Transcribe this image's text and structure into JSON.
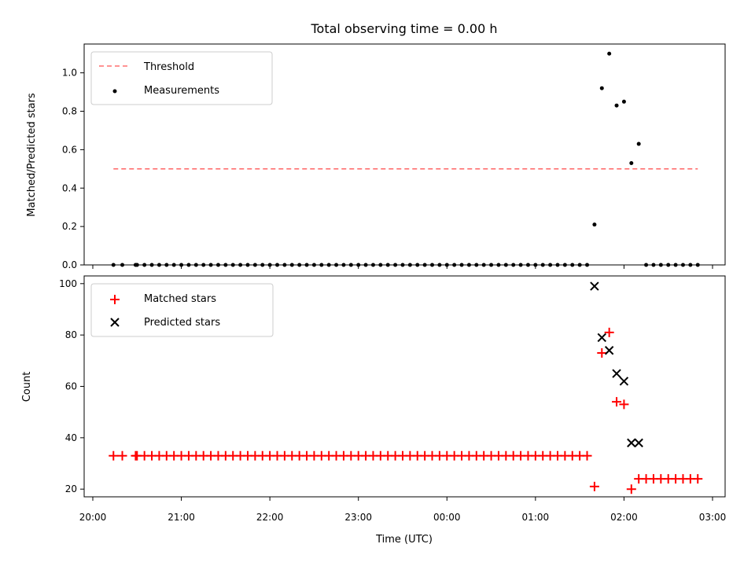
{
  "chart_data": [
    {
      "type": "scatter",
      "title": "Total observing time = 0.00 h",
      "xlabel": "",
      "ylabel": "Matched/Predicted stars",
      "xlim": [
        "20:00",
        "03:00"
      ],
      "ylim": [
        0.0,
        1.15
      ],
      "x_ticks": [
        "20:00",
        "21:00",
        "22:00",
        "23:00",
        "00:00",
        "01:00",
        "02:00",
        "03:00"
      ],
      "y_ticks": [
        "0.0",
        "0.2",
        "0.4",
        "0.6",
        "0.8",
        "1.0"
      ],
      "y_tick_values": [
        0.0,
        0.2,
        0.4,
        0.6,
        0.8,
        1.0
      ],
      "legend_position": "top-left",
      "x": [
        "20:14",
        "20:20",
        "20:29",
        "20:30",
        "20:35",
        "20:40",
        "20:45",
        "20:50",
        "20:55",
        "21:00",
        "21:05",
        "21:10",
        "21:15",
        "21:20",
        "21:25",
        "21:30",
        "21:35",
        "21:40",
        "21:45",
        "21:50",
        "21:55",
        "22:00",
        "22:05",
        "22:10",
        "22:15",
        "22:20",
        "22:25",
        "22:30",
        "22:35",
        "22:40",
        "22:45",
        "22:50",
        "22:55",
        "23:00",
        "23:05",
        "23:10",
        "23:15",
        "23:20",
        "23:25",
        "23:30",
        "23:35",
        "23:40",
        "23:45",
        "23:50",
        "23:55",
        "00:00",
        "00:05",
        "00:10",
        "00:15",
        "00:20",
        "00:25",
        "00:30",
        "00:35",
        "00:40",
        "00:45",
        "00:50",
        "00:55",
        "01:00",
        "01:05",
        "01:10",
        "01:15",
        "01:20",
        "01:25",
        "01:30",
        "01:35",
        "01:40",
        "01:45",
        "01:50",
        "01:55",
        "02:00",
        "02:05",
        "02:10",
        "02:15",
        "02:20",
        "02:25",
        "02:30",
        "02:35",
        "02:40",
        "02:45",
        "02:50"
      ],
      "series": [
        {
          "name": "Threshold",
          "style": "dashed-line",
          "color": "#ff7070",
          "x": [
            "20:14",
            "02:50"
          ],
          "values": [
            0.5,
            0.5
          ]
        },
        {
          "name": "Measurements",
          "style": "dot",
          "color": "#000000",
          "values": [
            0,
            0,
            0,
            0,
            0,
            0,
            0,
            0,
            0,
            0,
            0,
            0,
            0,
            0,
            0,
            0,
            0,
            0,
            0,
            0,
            0,
            0,
            0,
            0,
            0,
            0,
            0,
            0,
            0,
            0,
            0,
            0,
            0,
            0,
            0,
            0,
            0,
            0,
            0,
            0,
            0,
            0,
            0,
            0,
            0,
            0,
            0,
            0,
            0,
            0,
            0,
            0,
            0,
            0,
            0,
            0,
            0,
            0,
            0,
            0,
            0,
            0,
            0,
            0,
            0,
            0.21,
            0.92,
            1.1,
            0.83,
            0.85,
            0.53,
            0.63,
            0,
            0,
            0,
            0,
            0,
            0,
            0,
            0
          ]
        }
      ]
    },
    {
      "type": "scatter",
      "title": "",
      "xlabel": "Time (UTC)",
      "ylabel": "Count",
      "xlim": [
        "20:00",
        "03:00"
      ],
      "ylim": [
        17,
        103
      ],
      "x_ticks": [
        "20:00",
        "21:00",
        "22:00",
        "23:00",
        "00:00",
        "01:00",
        "02:00",
        "03:00"
      ],
      "y_ticks": [
        "20",
        "40",
        "60",
        "80",
        "100"
      ],
      "y_tick_values": [
        20,
        40,
        60,
        80,
        100
      ],
      "legend_position": "top-left",
      "x": [
        "20:14",
        "20:20",
        "20:29",
        "20:30",
        "20:35",
        "20:40",
        "20:45",
        "20:50",
        "20:55",
        "21:00",
        "21:05",
        "21:10",
        "21:15",
        "21:20",
        "21:25",
        "21:30",
        "21:35",
        "21:40",
        "21:45",
        "21:50",
        "21:55",
        "22:00",
        "22:05",
        "22:10",
        "22:15",
        "22:20",
        "22:25",
        "22:30",
        "22:35",
        "22:40",
        "22:45",
        "22:50",
        "22:55",
        "23:00",
        "23:05",
        "23:10",
        "23:15",
        "23:20",
        "23:25",
        "23:30",
        "23:35",
        "23:40",
        "23:45",
        "23:50",
        "23:55",
        "00:00",
        "00:05",
        "00:10",
        "00:15",
        "00:20",
        "00:25",
        "00:30",
        "00:35",
        "00:40",
        "00:45",
        "00:50",
        "00:55",
        "01:00",
        "01:05",
        "01:10",
        "01:15",
        "01:20",
        "01:25",
        "01:30",
        "01:35",
        "01:40",
        "01:45",
        "01:50",
        "01:55",
        "02:00",
        "02:05",
        "02:10",
        "02:15",
        "02:20",
        "02:25",
        "02:30",
        "02:35",
        "02:40",
        "02:45",
        "02:50"
      ],
      "series": [
        {
          "name": "Matched stars",
          "style": "plus",
          "color": "#ff0000",
          "values": [
            33,
            33,
            33,
            33,
            33,
            33,
            33,
            33,
            33,
            33,
            33,
            33,
            33,
            33,
            33,
            33,
            33,
            33,
            33,
            33,
            33,
            33,
            33,
            33,
            33,
            33,
            33,
            33,
            33,
            33,
            33,
            33,
            33,
            33,
            33,
            33,
            33,
            33,
            33,
            33,
            33,
            33,
            33,
            33,
            33,
            33,
            33,
            33,
            33,
            33,
            33,
            33,
            33,
            33,
            33,
            33,
            33,
            33,
            33,
            33,
            33,
            33,
            33,
            33,
            33,
            21,
            73,
            81,
            54,
            53,
            20,
            24,
            24,
            24,
            24,
            24,
            24,
            24,
            24,
            24
          ]
        },
        {
          "name": "Predicted stars",
          "style": "x",
          "color": "#000000",
          "x": [
            "01:40",
            "01:45",
            "01:50",
            "01:55",
            "02:00",
            "02:05",
            "02:10"
          ],
          "values": [
            99,
            79,
            74,
            65,
            62,
            38,
            38
          ]
        }
      ]
    }
  ]
}
